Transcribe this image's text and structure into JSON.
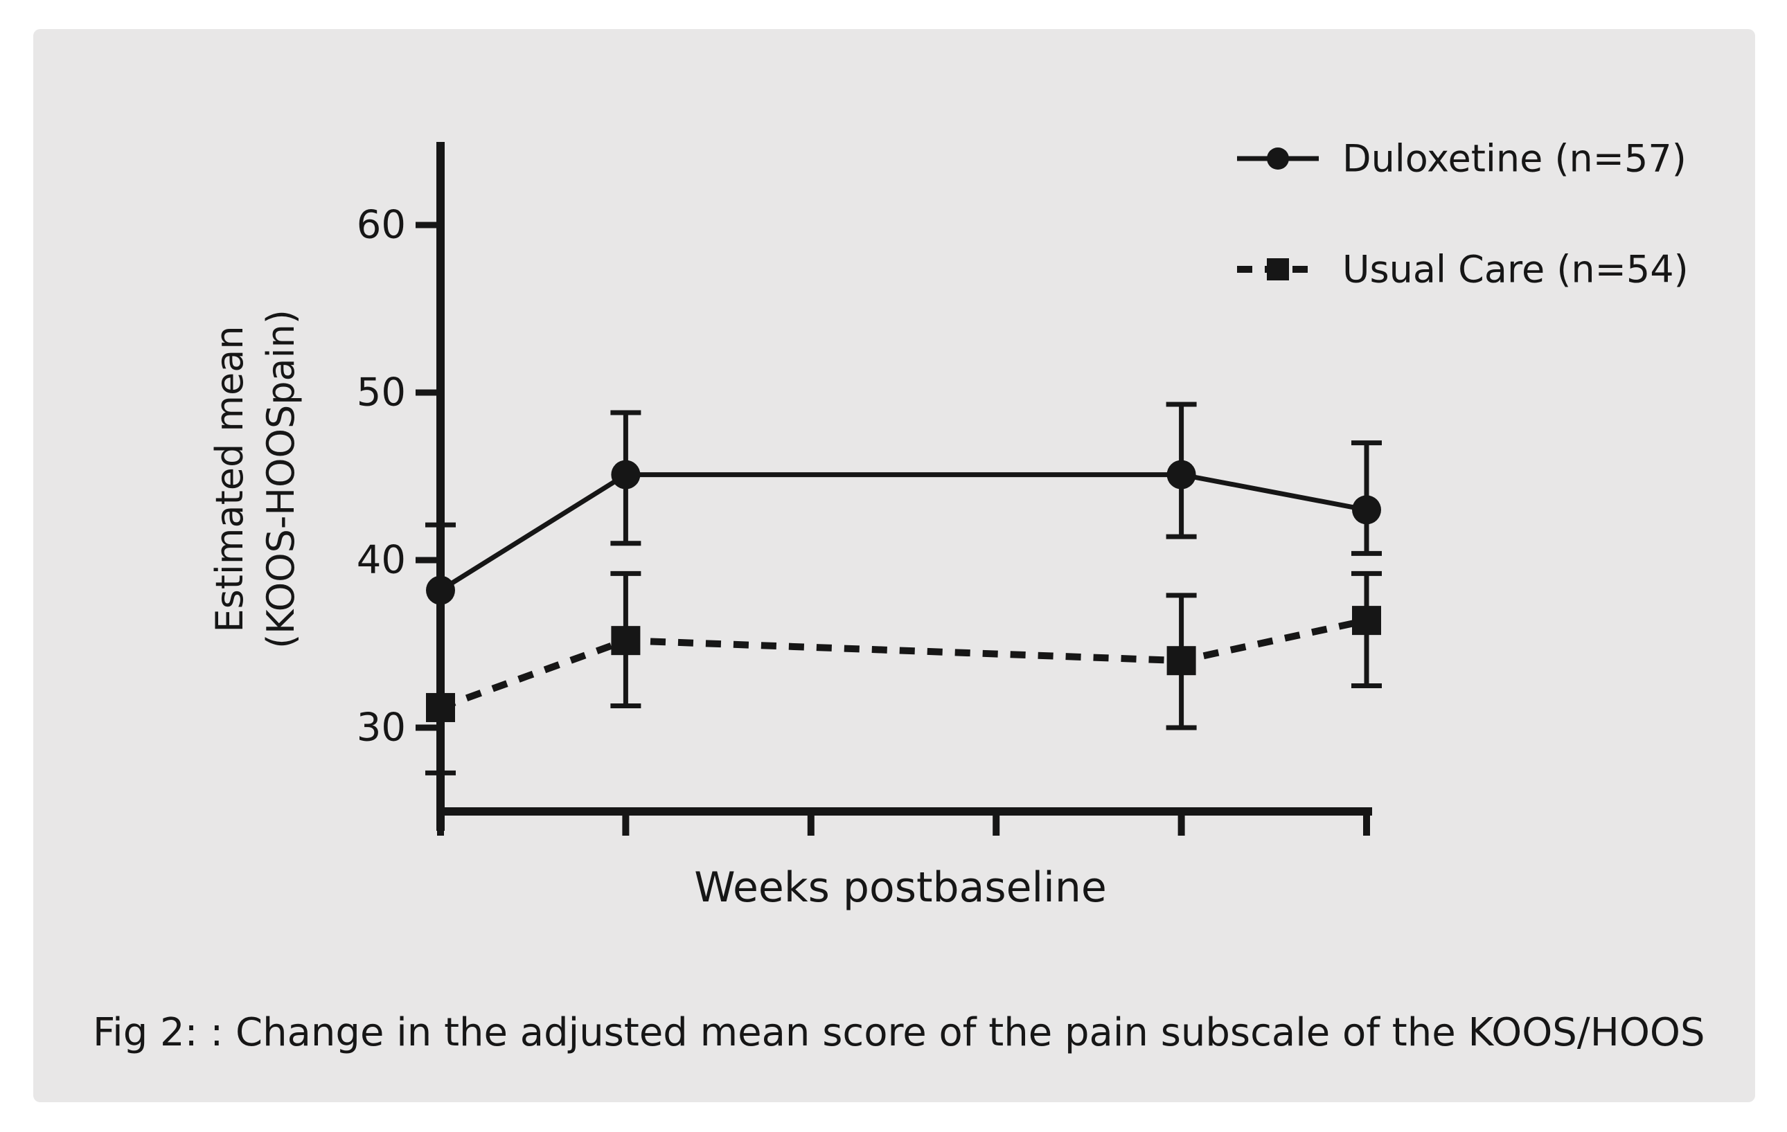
{
  "page": {
    "background": "#ffffff",
    "panel_color": "#e8e7e7"
  },
  "figure_caption": "Fig 2: : Change in the adjusted mean score of the pain subscale of the KOOS/HOOS",
  "chart_data": {
    "type": "line",
    "title": "",
    "xlabel": "Weeks postbaseline",
    "ylabel": "Estimated mean (KOOS-HOOSpain)",
    "ylabel_lines": [
      "Estimated mean",
      "(KOOS-HOOSpain)"
    ],
    "grid": false,
    "y_axis": {
      "ticks": [
        30,
        40,
        50,
        60
      ],
      "range": [
        25,
        64.8
      ]
    },
    "x_axis": {
      "label": "Weeks postbaseline",
      "n_ticks": 6,
      "tick_labels": [
        "",
        "",
        "",
        "",
        "",
        ""
      ]
    },
    "legend": {
      "position": "top-right"
    },
    "colors": {
      "ink": "#161616"
    },
    "series": [
      {
        "name": "Duloxetine (n=57)",
        "marker": "circle",
        "line_style": "solid",
        "tick_index": [
          0,
          1,
          4,
          5
        ],
        "values": [
          38.2,
          45.1,
          45.1,
          43.0
        ],
        "error_high": [
          42.1,
          48.8,
          49.3,
          47.0
        ],
        "error_low": [
          null,
          41.0,
          41.4,
          40.4
        ]
      },
      {
        "name": "Usual Care (n=54)",
        "marker": "square",
        "line_style": "dashed",
        "tick_index": [
          0,
          1,
          4,
          5
        ],
        "values": [
          31.2,
          35.2,
          34.0,
          36.4
        ],
        "error_high": [
          null,
          39.2,
          37.9,
          39.2
        ],
        "error_low": [
          27.3,
          31.3,
          30.0,
          32.5
        ]
      }
    ]
  }
}
